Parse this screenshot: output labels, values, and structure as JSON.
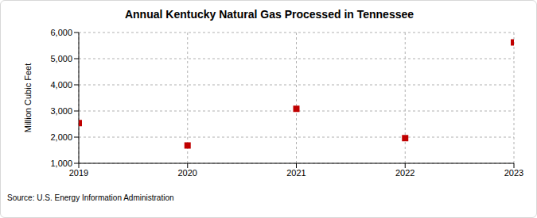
{
  "chart_data": {
    "type": "scatter",
    "title": "Annual Kentucky Natural Gas Processed in Tennessee",
    "y_label": "Million Cubic Feet",
    "source": "Source: U.S. Energy Information Administration",
    "x": [
      2019,
      2020,
      2021,
      2022,
      2023
    ],
    "values": [
      2540,
      1680,
      3080,
      1960,
      5620
    ],
    "color": "#c00000",
    "marker": "square",
    "xlim": [
      2019,
      2023
    ],
    "xticks": [
      2019,
      2020,
      2021,
      2022,
      2023
    ],
    "ylim": [
      1000,
      6000
    ],
    "yticks": [
      {
        "value": 1000,
        "label": "1,000"
      },
      {
        "value": 2000,
        "label": "2,000"
      },
      {
        "value": 3000,
        "label": "3,000"
      },
      {
        "value": 4000,
        "label": "4,000"
      },
      {
        "value": 5000,
        "label": "5,000"
      },
      {
        "value": 6000,
        "label": "6,000"
      }
    ],
    "grid": true
  }
}
